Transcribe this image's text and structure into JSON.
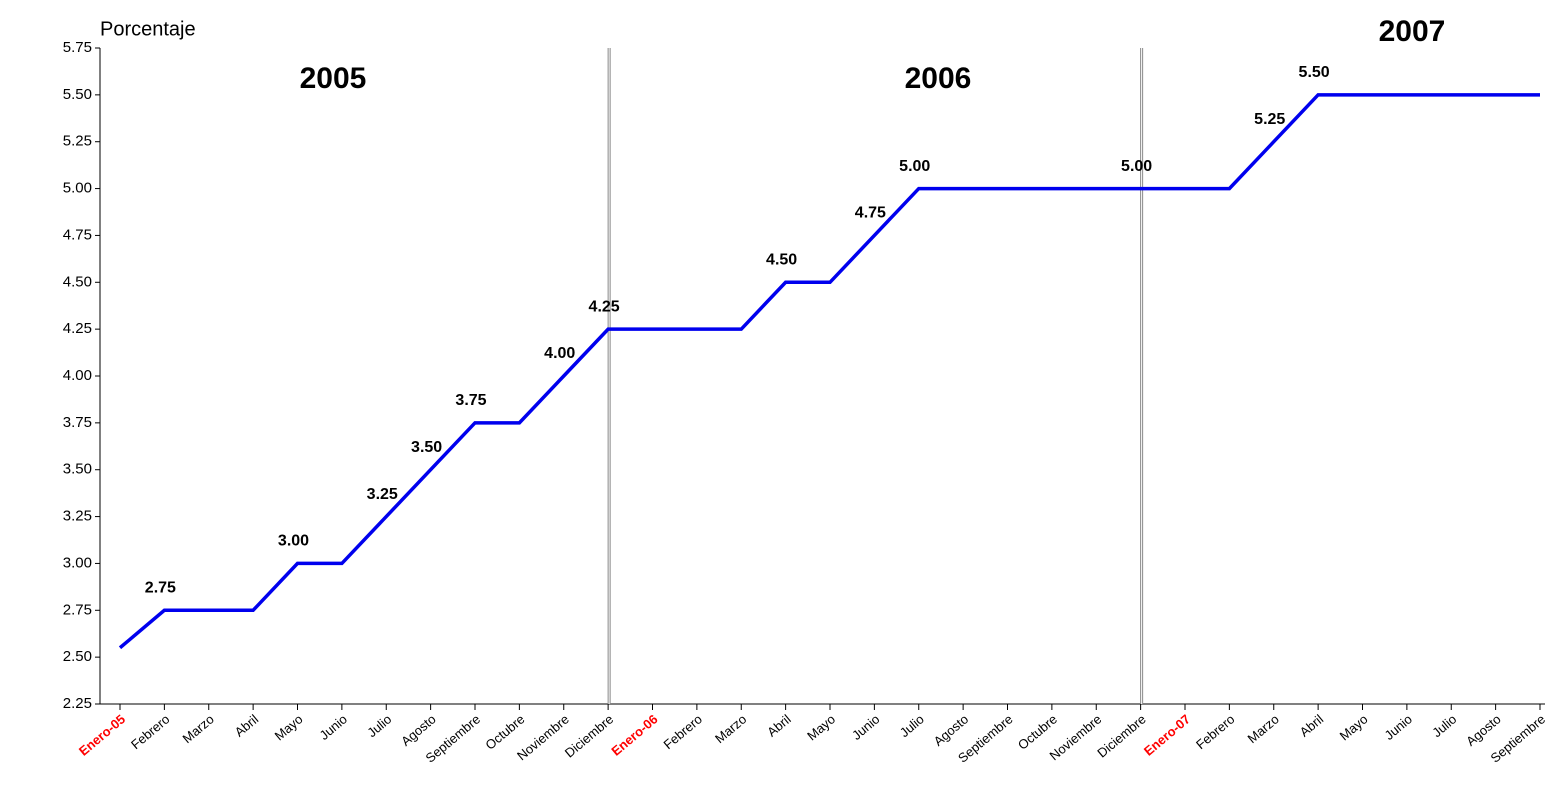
{
  "chart_data": {
    "type": "line",
    "y_label": "Porcentaje",
    "categories": [
      "Enero-05",
      "Febrero",
      "Marzo",
      "Abril",
      "Mayo",
      "Junio",
      "Julio",
      "Agosto",
      "Septiembre",
      "Octubre",
      "Noviembre",
      "Diciembre",
      "Enero-06",
      "Febrero",
      "Marzo",
      "Abril",
      "Mayo",
      "Junio",
      "Julio",
      "Agosto",
      "Septiembre",
      "Octubre",
      "Noviembre",
      "Diciembre",
      "Enero-07",
      "Febrero",
      "Marzo",
      "Abril",
      "Mayo",
      "Junio",
      "Julio",
      "Agosto",
      "Septiembre"
    ],
    "category_colors": [
      "#ff0000",
      "#000000",
      "#000000",
      "#000000",
      "#000000",
      "#000000",
      "#000000",
      "#000000",
      "#000000",
      "#000000",
      "#000000",
      "#000000",
      "#ff0000",
      "#000000",
      "#000000",
      "#000000",
      "#000000",
      "#000000",
      "#000000",
      "#000000",
      "#000000",
      "#000000",
      "#000000",
      "#000000",
      "#ff0000",
      "#000000",
      "#000000",
      "#000000",
      "#000000",
      "#000000",
      "#000000",
      "#000000",
      "#000000"
    ],
    "values": [
      2.55,
      2.75,
      2.75,
      2.75,
      3.0,
      3.0,
      3.25,
      3.5,
      3.75,
      3.75,
      4.0,
      4.25,
      4.25,
      4.25,
      4.25,
      4.5,
      4.5,
      4.75,
      5.0,
      5.0,
      5.0,
      5.0,
      5.0,
      5.0,
      5.0,
      5.0,
      5.25,
      5.5,
      5.5,
      5.5,
      5.5,
      5.5,
      5.5
    ],
    "value_labels": [
      null,
      "2.75",
      null,
      null,
      "3.00",
      null,
      "3.25",
      "3.50",
      "3.75",
      null,
      "4.00",
      "4.25",
      null,
      null,
      null,
      "4.50",
      null,
      "4.75",
      "5.00",
      null,
      null,
      null,
      null,
      "5.00",
      null,
      null,
      "5.25",
      "5.50",
      null,
      null,
      null,
      null,
      null
    ],
    "color": "#0000ee",
    "annotations": [
      "2005",
      "2006",
      "2007"
    ],
    "ylim": [
      2.25,
      5.75
    ],
    "yticks": [
      {
        "value": 2.25,
        "label": "2.25"
      },
      {
        "value": 2.5,
        "label": "2.50"
      },
      {
        "value": 2.75,
        "label": "2.75"
      },
      {
        "value": 3.0,
        "label": "3.00"
      },
      {
        "value": 3.25,
        "label": "3.25"
      },
      {
        "value": 3.5,
        "label": "3.50"
      },
      {
        "value": 3.75,
        "label": "3.75"
      },
      {
        "value": 4.0,
        "label": "4.00"
      },
      {
        "value": 4.25,
        "label": "4.25"
      },
      {
        "value": 4.5,
        "label": "4.50"
      },
      {
        "value": 4.75,
        "label": "4.75"
      },
      {
        "value": 5.0,
        "label": "5.00"
      },
      {
        "value": 5.25,
        "label": "5.25"
      },
      {
        "value": 5.5,
        "label": "5.50"
      },
      {
        "value": 5.75,
        "label": "5.75"
      }
    ],
    "grid": false
  }
}
